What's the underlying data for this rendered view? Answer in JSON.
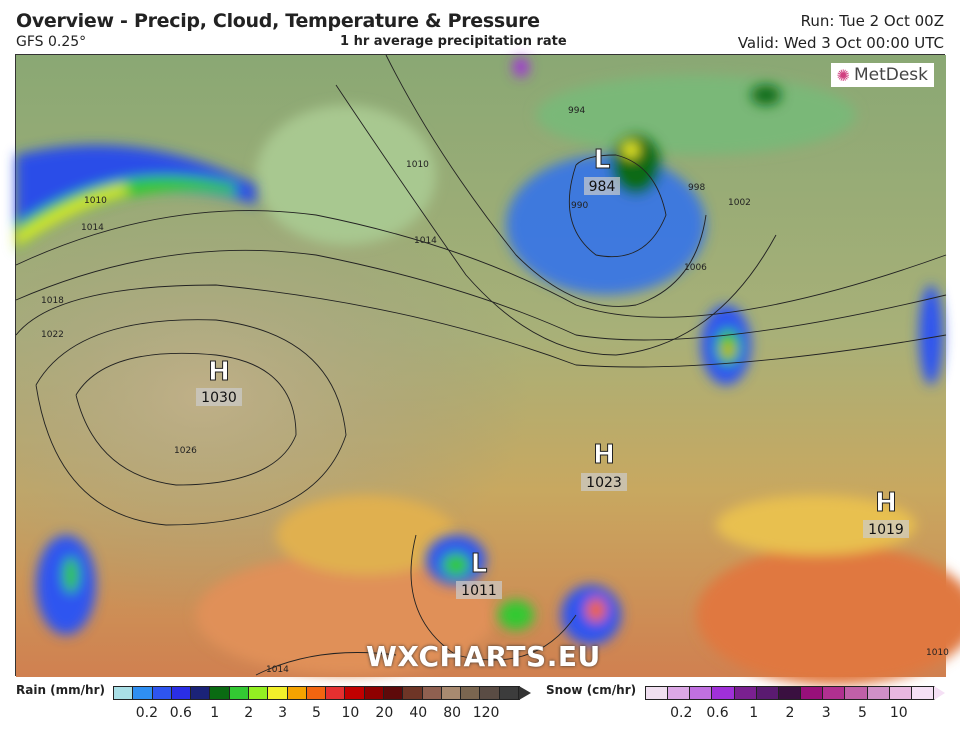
{
  "header": {
    "title": "Overview - Precip, Cloud, Temperature & Pressure",
    "model": "GFS 0.25°",
    "subtitle": "1 hr average precipitation rate",
    "run": "Run: Tue 2 Oct 00Z",
    "valid": "Valid: Wed 3 Oct 00:00 UTC"
  },
  "map": {
    "logo": "MetDesk",
    "watermark": "WXCHARTS.EU",
    "pressure_centers": [
      {
        "type": "H",
        "value": "1030"
      },
      {
        "type": "H",
        "value": "1023"
      },
      {
        "type": "H",
        "value": "1019"
      },
      {
        "type": "L",
        "value": "984"
      },
      {
        "type": "L",
        "value": "1011"
      }
    ],
    "isobar_labels": [
      "1010",
      "1014",
      "1018",
      "1022",
      "1026",
      "1006",
      "1002",
      "990",
      "994",
      "998",
      "1014",
      "1010",
      "1014",
      "1010"
    ]
  },
  "legend": {
    "rain": {
      "label": "Rain (mm/hr)",
      "colors": [
        "#a9dfe6",
        "#2f8ff2",
        "#2e55f0",
        "#2a2ee6",
        "#1b2378",
        "#0a6b12",
        "#33c933",
        "#93f022",
        "#f2f02a",
        "#f5a300",
        "#f26510",
        "#e53030",
        "#c20000",
        "#8f0000",
        "#5e0a0a",
        "#6e3526",
        "#8f6050",
        "#a88a70",
        "#7a6650",
        "#5a4c44",
        "#3c3c3c"
      ],
      "ticks": [
        "0.2",
        "0.6",
        "1",
        "2",
        "3",
        "5",
        "10",
        "20",
        "40",
        "80",
        "120"
      ]
    },
    "snow": {
      "label": "Snow (cm/hr)",
      "colors": [
        "#f0dff0",
        "#dca8e6",
        "#c070e0",
        "#a030d8",
        "#7a2090",
        "#5a1a70",
        "#3a1040",
        "#98107a",
        "#b03090",
        "#c060a8",
        "#d090c8",
        "#e8b8e0",
        "#f5e0f5"
      ],
      "ticks": [
        "0.2",
        "0.6",
        "1",
        "2",
        "3",
        "5",
        "10"
      ]
    }
  }
}
